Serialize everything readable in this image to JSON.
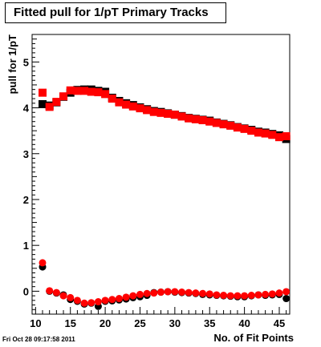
{
  "title": "Fitted pull for 1/pT Primary Tracks",
  "timestamp": "Fri Oct 28 09:17:58 2011",
  "chart_data": {
    "type": "scatter",
    "title": "Fitted pull for 1/pT Primary Tracks",
    "xlabel": "No. of Fit Points",
    "ylabel": "pull for 1/pT",
    "xlim": [
      9.5,
      46.5
    ],
    "ylim": [
      -0.5,
      5.6
    ],
    "x_ticks": [
      10,
      15,
      20,
      25,
      30,
      35,
      40,
      45
    ],
    "y_ticks": [
      0,
      1,
      2,
      3,
      4,
      5
    ],
    "grid": false,
    "marker_styles": [
      "square",
      "circle"
    ],
    "series": [
      {
        "color": "#000000",
        "marker": "square",
        "x": [
          11,
          12,
          13,
          14,
          15,
          16,
          17,
          18,
          19,
          20,
          21,
          22,
          23,
          24,
          25,
          26,
          27,
          28,
          29,
          30,
          31,
          32,
          33,
          34,
          35,
          36,
          37,
          38,
          39,
          40,
          41,
          42,
          43,
          44,
          45,
          46
        ],
        "y": [
          4.08,
          4.05,
          4.12,
          4.24,
          4.33,
          4.39,
          4.4,
          4.4,
          4.37,
          4.35,
          4.22,
          4.15,
          4.1,
          4.06,
          4.01,
          3.97,
          3.93,
          3.91,
          3.88,
          3.85,
          3.82,
          3.78,
          3.76,
          3.74,
          3.72,
          3.68,
          3.65,
          3.62,
          3.58,
          3.55,
          3.52,
          3.48,
          3.46,
          3.43,
          3.4,
          3.32
        ]
      },
      {
        "color": "#ff0000",
        "marker": "square",
        "x": [
          11,
          12,
          13,
          14,
          15,
          16,
          17,
          18,
          19,
          20,
          21,
          22,
          23,
          24,
          25,
          26,
          27,
          28,
          29,
          30,
          31,
          32,
          33,
          34,
          35,
          36,
          37,
          38,
          39,
          40,
          41,
          42,
          43,
          44,
          45,
          46
        ],
        "y": [
          4.33,
          4.02,
          4.13,
          4.25,
          4.38,
          4.37,
          4.37,
          4.35,
          4.34,
          4.3,
          4.2,
          4.12,
          4.07,
          4.03,
          3.99,
          3.95,
          3.91,
          3.89,
          3.87,
          3.85,
          3.81,
          3.77,
          3.75,
          3.73,
          3.7,
          3.67,
          3.64,
          3.61,
          3.57,
          3.54,
          3.5,
          3.46,
          3.44,
          3.41,
          3.36,
          3.38
        ]
      },
      {
        "color": "#000000",
        "marker": "circle",
        "x": [
          11,
          12,
          13,
          14,
          15,
          16,
          17,
          18,
          19,
          20,
          21,
          22,
          23,
          24,
          25,
          26,
          27,
          28,
          29,
          30,
          31,
          32,
          33,
          34,
          35,
          36,
          37,
          38,
          39,
          40,
          41,
          42,
          43,
          44,
          45,
          46
        ],
        "y": [
          0.53,
          0.0,
          -0.04,
          -0.08,
          -0.18,
          -0.22,
          -0.28,
          -0.26,
          -0.33,
          -0.22,
          -0.21,
          -0.19,
          -0.17,
          -0.14,
          -0.12,
          -0.09,
          -0.03,
          -0.02,
          -0.01,
          -0.02,
          -0.03,
          -0.04,
          -0.05,
          -0.07,
          -0.08,
          -0.09,
          -0.1,
          -0.11,
          -0.12,
          -0.12,
          -0.1,
          -0.08,
          -0.09,
          -0.08,
          -0.07,
          -0.16
        ]
      },
      {
        "color": "#ff0000",
        "marker": "circle",
        "x": [
          11,
          12,
          13,
          14,
          15,
          16,
          17,
          18,
          19,
          20,
          21,
          22,
          23,
          24,
          25,
          26,
          27,
          28,
          29,
          30,
          31,
          32,
          33,
          34,
          35,
          36,
          37,
          38,
          39,
          40,
          41,
          42,
          43,
          44,
          45,
          46
        ],
        "y": [
          0.62,
          0.01,
          -0.03,
          -0.1,
          -0.14,
          -0.2,
          -0.26,
          -0.25,
          -0.23,
          -0.2,
          -0.18,
          -0.16,
          -0.13,
          -0.1,
          -0.07,
          -0.05,
          -0.04,
          -0.02,
          -0.01,
          -0.01,
          -0.02,
          -0.03,
          -0.04,
          -0.05,
          -0.06,
          -0.08,
          -0.09,
          -0.1,
          -0.1,
          -0.1,
          -0.09,
          -0.08,
          -0.07,
          -0.06,
          -0.04,
          -0.01
        ]
      }
    ]
  }
}
